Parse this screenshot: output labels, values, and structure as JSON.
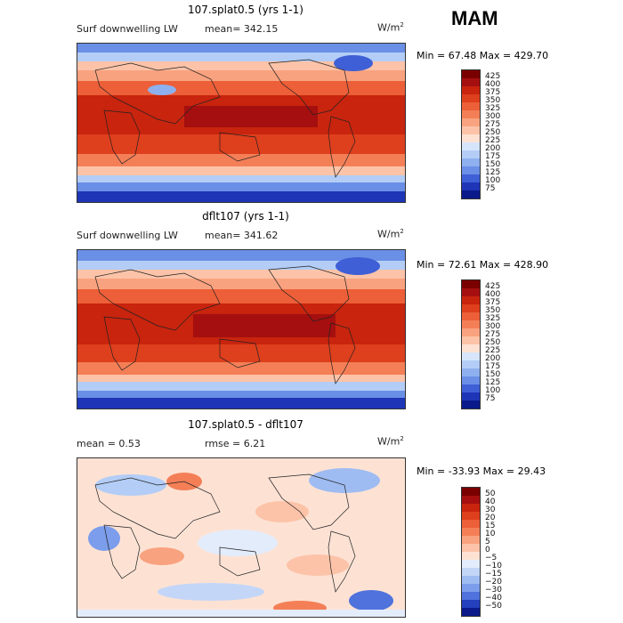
{
  "season": "MAM",
  "panels": [
    {
      "title": "107.splat0.5 (yrs 1-1)",
      "left_label": "Surf downwelling LW",
      "mean_text": "mean=  342.15",
      "units": "W/m",
      "units_sup": "2",
      "minmax": "Min =  67.48 Max = 429.70",
      "colorbar": {
        "labels": [
          "425",
          "400",
          "375",
          "350",
          "325",
          "300",
          "275",
          "250",
          "225",
          "200",
          "175",
          "150",
          "125",
          "100",
          "75"
        ],
        "colors": [
          "#7a0000",
          "#a50f0f",
          "#c8240e",
          "#de3f1c",
          "#ec5f38",
          "#f47f57",
          "#f9a27f",
          "#fcc3a8",
          "#fde2d4",
          "#d7e5fb",
          "#b3cdf6",
          "#8eb0ef",
          "#6a8fe6",
          "#3f5fd6",
          "#1d35b6",
          "#0a1a8a"
        ]
      }
    },
    {
      "title": "dflt107 (yrs 1-1)",
      "left_label": "Surf downwelling LW",
      "mean_text": "mean=  341.62",
      "units": "W/m",
      "units_sup": "2",
      "minmax": "Min =  72.61 Max = 428.90",
      "colorbar": {
        "labels": [
          "425",
          "400",
          "375",
          "350",
          "325",
          "300",
          "275",
          "250",
          "225",
          "200",
          "175",
          "150",
          "125",
          "100",
          "75"
        ],
        "colors": [
          "#7a0000",
          "#a50f0f",
          "#c8240e",
          "#de3f1c",
          "#ec5f38",
          "#f47f57",
          "#f9a27f",
          "#fcc3a8",
          "#fde2d4",
          "#d7e5fb",
          "#b3cdf6",
          "#8eb0ef",
          "#6a8fe6",
          "#3f5fd6",
          "#1d35b6",
          "#0a1a8a"
        ]
      }
    },
    {
      "title": "107.splat0.5 - dflt107",
      "left_label": "mean =    0.53",
      "mean_text": "rmse =    6.21",
      "units": "W/m",
      "units_sup": "2",
      "minmax": "Min = -33.93 Max =  29.43",
      "colorbar": {
        "labels": [
          "50",
          "40",
          "30",
          "20",
          "15",
          "10",
          "5",
          "0",
          "−5",
          "−10",
          "−15",
          "−20",
          "−30",
          "−40",
          "−50"
        ],
        "colors": [
          "#7a0000",
          "#a50f0f",
          "#c8240e",
          "#de3f1c",
          "#ec5f38",
          "#f47f57",
          "#f9a27f",
          "#fcc3a8",
          "#fde2d4",
          "#e3ecfb",
          "#c3d6f8",
          "#9fbcf2",
          "#7b9deb",
          "#4f72dc",
          "#2440bd",
          "#0a1a8a"
        ]
      }
    }
  ]
}
